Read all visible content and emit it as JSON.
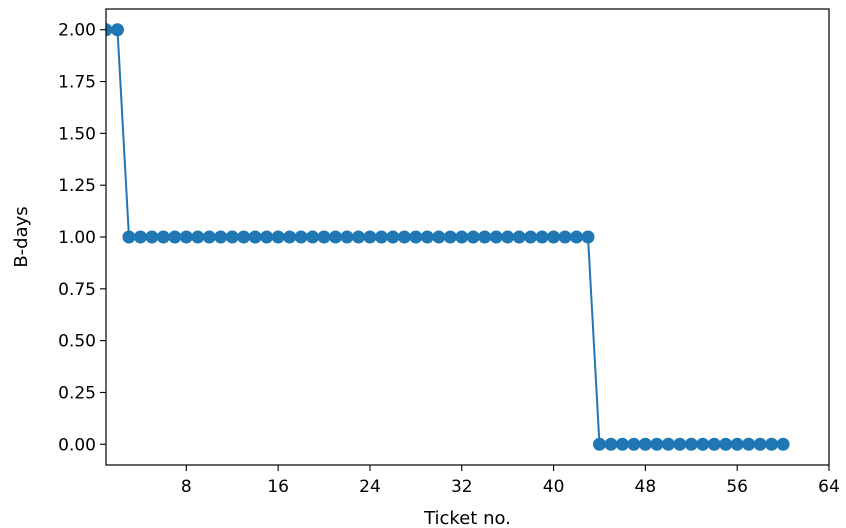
{
  "chart_data": {
    "type": "line",
    "title": "",
    "xlabel": "Ticket no.",
    "ylabel": "B-days",
    "xlim": [
      1,
      64
    ],
    "ylim": [
      -0.1,
      2.1
    ],
    "xticks": [
      8,
      16,
      24,
      32,
      40,
      48,
      56,
      64
    ],
    "xtick_labels": [
      "8",
      "16",
      "24",
      "32",
      "40",
      "48",
      "56",
      "64"
    ],
    "yticks": [
      0.0,
      0.25,
      0.5,
      0.75,
      1.0,
      1.25,
      1.5,
      1.75,
      2.0
    ],
    "ytick_labels": [
      "0.00",
      "0.25",
      "0.50",
      "0.75",
      "1.00",
      "1.25",
      "1.50",
      "1.75",
      "2.00"
    ],
    "grid": false,
    "legend": "none",
    "series": [
      {
        "color": "#1f77b4",
        "marker": "circle",
        "x": [
          1,
          2,
          3,
          4,
          5,
          6,
          7,
          8,
          9,
          10,
          11,
          12,
          13,
          14,
          15,
          16,
          17,
          18,
          19,
          20,
          21,
          22,
          23,
          24,
          25,
          26,
          27,
          28,
          29,
          30,
          31,
          32,
          33,
          34,
          35,
          36,
          37,
          38,
          39,
          40,
          41,
          42,
          43,
          44,
          45,
          46,
          47,
          48,
          49,
          50,
          51,
          52,
          53,
          54,
          55,
          56,
          57,
          58,
          59,
          60
        ],
        "y": [
          2,
          2,
          1,
          1,
          1,
          1,
          1,
          1,
          1,
          1,
          1,
          1,
          1,
          1,
          1,
          1,
          1,
          1,
          1,
          1,
          1,
          1,
          1,
          1,
          1,
          1,
          1,
          1,
          1,
          1,
          1,
          1,
          1,
          1,
          1,
          1,
          1,
          1,
          1,
          1,
          1,
          1,
          1,
          0,
          0,
          0,
          0,
          0,
          0,
          0,
          0,
          0,
          0,
          0,
          0,
          0,
          0,
          0,
          0,
          0
        ]
      }
    ]
  }
}
